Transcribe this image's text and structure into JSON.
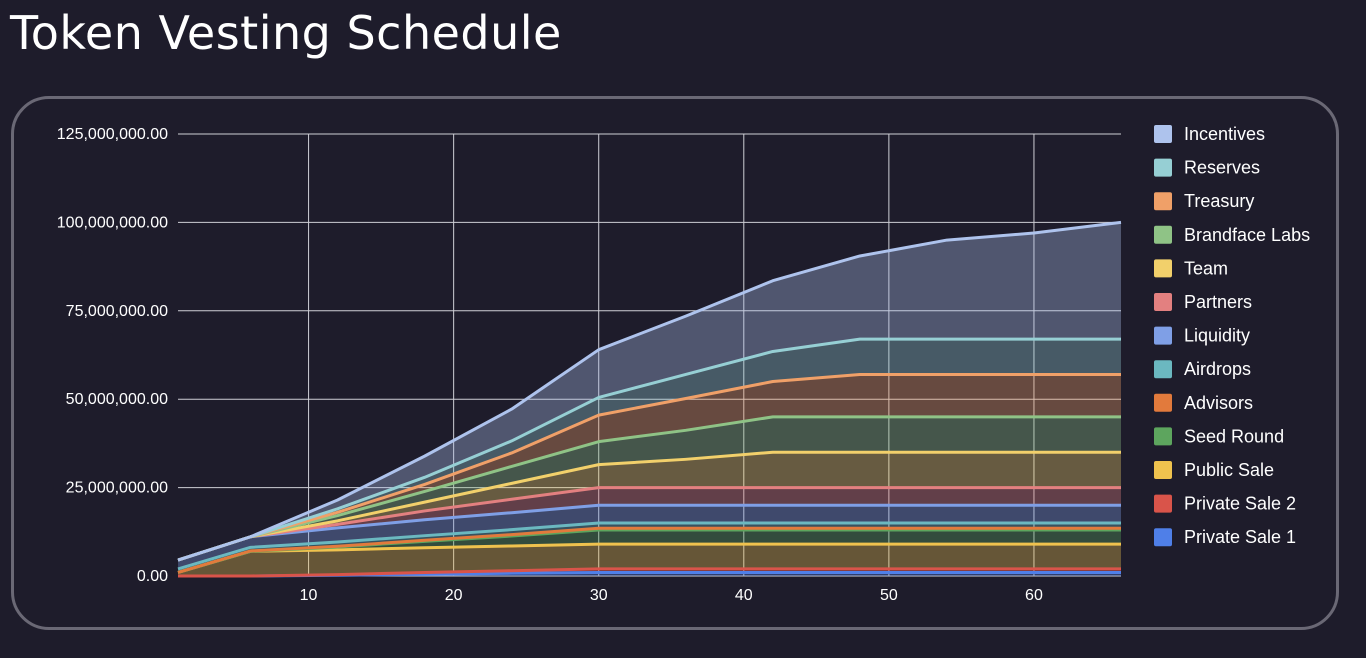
{
  "page": {
    "title": "Token Vesting Schedule"
  },
  "chart_data": {
    "type": "area",
    "stacked": true,
    "title": "Token Vesting Schedule",
    "xlabel": "",
    "ylabel": "",
    "xlim": [
      1,
      66
    ],
    "ylim": [
      0,
      125000000
    ],
    "x_ticks": [
      10,
      20,
      30,
      40,
      50,
      60
    ],
    "x_tick_labels": [
      "10",
      "20",
      "30",
      "40",
      "50",
      "60"
    ],
    "y_ticks": [
      0,
      25000000,
      50000000,
      75000000,
      100000000,
      125000000
    ],
    "y_tick_labels": [
      "0.00",
      "25,000,000.00",
      "50,000,000.00",
      "75,000,000.00",
      "100,000,000.00",
      "125,000,000.00"
    ],
    "grid": true,
    "legend_position": "right",
    "x": [
      1,
      6,
      12,
      18,
      24,
      30,
      36,
      42,
      48,
      54,
      60,
      66
    ],
    "series": [
      {
        "name": "Private Sale 1",
        "color": "#4f7fe8",
        "values": [
          0,
          0,
          200000,
          500000,
          800000,
          1000000,
          1000000,
          1000000,
          1000000,
          1000000,
          1000000,
          1000000
        ]
      },
      {
        "name": "Private Sale 2",
        "color": "#d9544a",
        "values": [
          0,
          0,
          200000,
          500000,
          700000,
          1000000,
          1000000,
          1000000,
          1000000,
          1000000,
          1000000,
          1000000
        ]
      },
      {
        "name": "Public Sale",
        "color": "#efc24e",
        "values": [
          1000000,
          7000000,
          7000000,
          7000000,
          7000000,
          7000000,
          7000000,
          7000000,
          7000000,
          7000000,
          7000000,
          7000000
        ]
      },
      {
        "name": "Seed Round",
        "color": "#5da55e",
        "values": [
          0,
          0,
          800000,
          1800000,
          2800000,
          4000000,
          4000000,
          4000000,
          4000000,
          4000000,
          4000000,
          4000000
        ]
      },
      {
        "name": "Advisors",
        "color": "#e27a3c",
        "values": [
          0,
          100000,
          200000,
          300000,
          400000,
          500000,
          500000,
          500000,
          500000,
          500000,
          500000,
          500000
        ]
      },
      {
        "name": "Airdrops",
        "color": "#6bb8c0",
        "values": [
          1000000,
          1000000,
          1200000,
          1300000,
          1400000,
          1500000,
          1500000,
          1500000,
          1500000,
          1500000,
          1500000,
          1500000
        ]
      },
      {
        "name": "Liquidity",
        "color": "#7f9fe6",
        "values": [
          2500000,
          3000000,
          4000000,
          4500000,
          4800000,
          5000000,
          5000000,
          5000000,
          5000000,
          5000000,
          5000000,
          5000000
        ]
      },
      {
        "name": "Partners",
        "color": "#e38080",
        "values": [
          0,
          0,
          1000000,
          2500000,
          3800000,
          5000000,
          5000000,
          5000000,
          5000000,
          5000000,
          5000000,
          5000000
        ]
      },
      {
        "name": "Team",
        "color": "#f2d06b",
        "values": [
          0,
          0,
          1000000,
          2500000,
          4500000,
          6500000,
          8000000,
          10000000,
          10000000,
          10000000,
          10000000,
          10000000
        ]
      },
      {
        "name": "Brandface Labs",
        "color": "#8fc386",
        "values": [
          0,
          0,
          1500000,
          3000000,
          4800000,
          6500000,
          8200000,
          10000000,
          10000000,
          10000000,
          10000000,
          10000000
        ]
      },
      {
        "name": "Treasury",
        "color": "#f0a068",
        "values": [
          0,
          0,
          900000,
          2000000,
          3800000,
          7500000,
          9000000,
          10000000,
          12000000,
          12000000,
          12000000,
          12000000
        ]
      },
      {
        "name": "Reserves",
        "color": "#96cfd4",
        "values": [
          0,
          0,
          1000000,
          2000000,
          3400000,
          5000000,
          6800000,
          8500000,
          10000000,
          10000000,
          10000000,
          10000000
        ]
      },
      {
        "name": "Incentives",
        "color": "#aec3ed",
        "values": [
          0,
          0,
          2500000,
          6000000,
          9000000,
          13500000,
          16500000,
          20000000,
          23500000,
          28000000,
          30000000,
          33000000
        ]
      }
    ],
    "legend_order": [
      "Incentives",
      "Reserves",
      "Treasury",
      "Brandface Labs",
      "Team",
      "Partners",
      "Liquidity",
      "Airdrops",
      "Advisors",
      "Seed Round",
      "Public Sale",
      "Private Sale 2",
      "Private Sale 1"
    ]
  }
}
